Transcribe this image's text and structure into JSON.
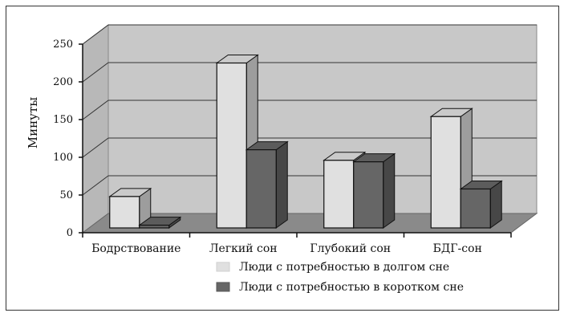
{
  "chart_data": {
    "type": "bar",
    "title": "",
    "xlabel": "",
    "ylabel": "Минуты",
    "ylim": [
      0,
      250
    ],
    "yticks": [
      0,
      50,
      100,
      150,
      200,
      250
    ],
    "grid": true,
    "legend_position": "bottom-right",
    "categories": [
      "Бодрствование",
      "Легкий сон",
      "Глубокий сон",
      "БДГ-сон"
    ],
    "series": [
      {
        "name": "Люди с потребностью в долгом сне",
        "values": [
          48,
          225,
          96,
          154
        ],
        "color": "#e0e0e0"
      },
      {
        "name": "Люди с потребностью в коротком сне",
        "values": [
          10,
          110,
          94,
          58
        ],
        "color": "#666666"
      }
    ]
  }
}
